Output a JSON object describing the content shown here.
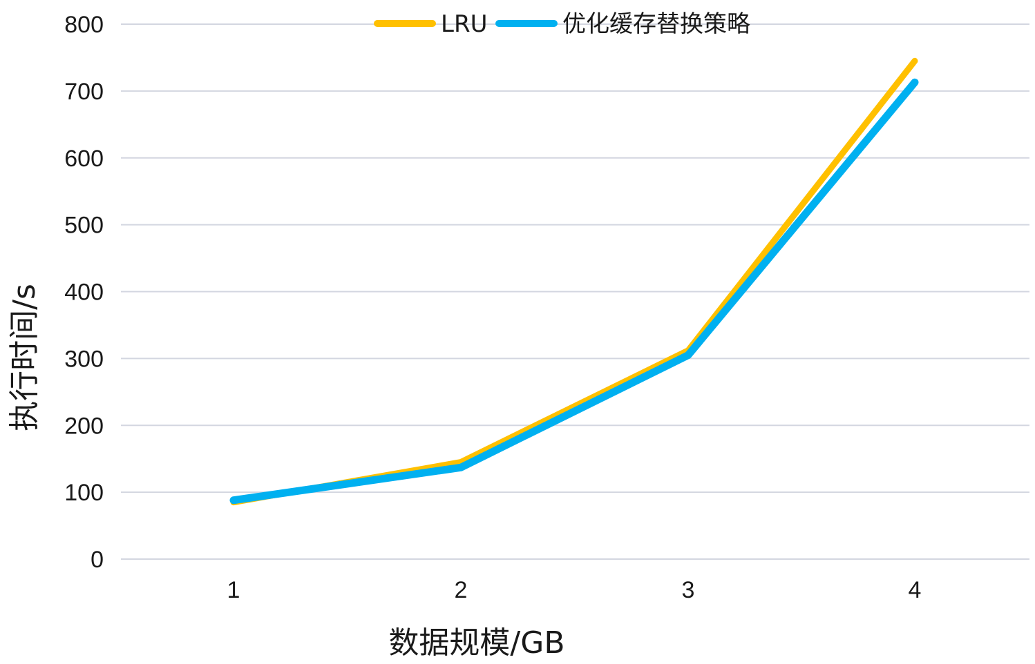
{
  "chart_data": {
    "type": "line",
    "x": [
      1,
      2,
      3,
      4
    ],
    "categories": [
      "1",
      "2",
      "3",
      "4"
    ],
    "series": [
      {
        "name": "LRU",
        "values": [
          85,
          145,
          312,
          745
        ],
        "color": "#ffc000"
      },
      {
        "name": "优化缓存替换策略",
        "values": [
          88,
          137,
          305,
          713
        ],
        "color": "#00b0f0"
      }
    ],
    "xlabel": "数据规模/GB",
    "ylabel": "执行时间/s",
    "ylim": [
      0,
      800
    ],
    "yticks": [
      "0",
      "100",
      "200",
      "300",
      "400",
      "500",
      "600",
      "700",
      "800"
    ],
    "grid": true,
    "legend_position": "top-center"
  }
}
